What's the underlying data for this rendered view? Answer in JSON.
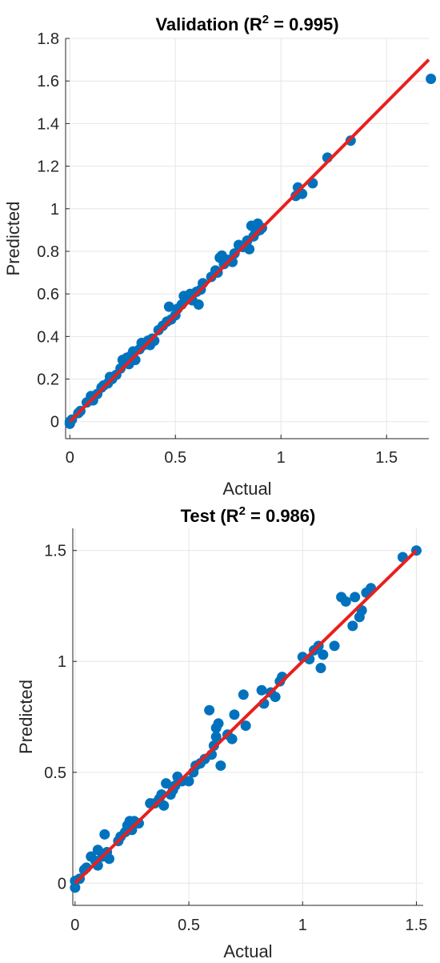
{
  "chart_data": [
    {
      "type": "scatter",
      "title": "Validation (R",
      "title_sup": "2",
      "title_rest": " = 0.995)",
      "xlabel": "Actual",
      "ylabel": "Predicted",
      "xlim": [
        -0.02,
        1.7
      ],
      "ylim": [
        -0.08,
        1.8
      ],
      "xticks": [
        0,
        0.5,
        1,
        1.5
      ],
      "xtick_labels": [
        "0",
        "0.5",
        "1",
        "1.5"
      ],
      "yticks": [
        0,
        0.2,
        0.4,
        0.6,
        0.8,
        1,
        1.2,
        1.4,
        1.6,
        1.8
      ],
      "ytick_labels": [
        "0",
        "0.2",
        "0.4",
        "0.6",
        "0.8",
        "1",
        "1.2",
        "1.4",
        "1.6",
        "1.8"
      ],
      "grid": true,
      "point_color": "#0072BD",
      "fit_color": "#E8201E",
      "fit_line": [
        [
          0,
          0
        ],
        [
          1.7,
          1.7
        ]
      ],
      "points": [
        [
          0,
          0
        ],
        [
          0.01,
          0.01
        ],
        [
          0,
          -0.01
        ],
        [
          0.04,
          0.04
        ],
        [
          0.05,
          0.05
        ],
        [
          0.08,
          0.09
        ],
        [
          0.1,
          0.12
        ],
        [
          0.11,
          0.1
        ],
        [
          0.13,
          0.13
        ],
        [
          0.15,
          0.16
        ],
        [
          0.16,
          0.17
        ],
        [
          0.18,
          0.18
        ],
        [
          0.19,
          0.21
        ],
        [
          0.2,
          0.2
        ],
        [
          0.22,
          0.22
        ],
        [
          0.24,
          0.25
        ],
        [
          0.25,
          0.29
        ],
        [
          0.27,
          0.3
        ],
        [
          0.28,
          0.27
        ],
        [
          0.29,
          0.31
        ],
        [
          0.3,
          0.33
        ],
        [
          0.31,
          0.29
        ],
        [
          0.33,
          0.34
        ],
        [
          0.34,
          0.37
        ],
        [
          0.35,
          0.36
        ],
        [
          0.37,
          0.38
        ],
        [
          0.38,
          0.36
        ],
        [
          0.39,
          0.39
        ],
        [
          0.4,
          0.38
        ],
        [
          0.42,
          0.43
        ],
        [
          0.44,
          0.45
        ],
        [
          0.46,
          0.47
        ],
        [
          0.47,
          0.54
        ],
        [
          0.48,
          0.48
        ],
        [
          0.5,
          0.5
        ],
        [
          0.51,
          0.53
        ],
        [
          0.53,
          0.55
        ],
        [
          0.54,
          0.59
        ],
        [
          0.55,
          0.58
        ],
        [
          0.57,
          0.6
        ],
        [
          0.58,
          0.57
        ],
        [
          0.6,
          0.61
        ],
        [
          0.61,
          0.55
        ],
        [
          0.62,
          0.62
        ],
        [
          0.63,
          0.65
        ],
        [
          0.67,
          0.68
        ],
        [
          0.69,
          0.71
        ],
        [
          0.7,
          0.7
        ],
        [
          0.71,
          0.77
        ],
        [
          0.72,
          0.78
        ],
        [
          0.73,
          0.74
        ],
        [
          0.75,
          0.76
        ],
        [
          0.77,
          0.75
        ],
        [
          0.78,
          0.79
        ],
        [
          0.8,
          0.83
        ],
        [
          0.82,
          0.82
        ],
        [
          0.84,
          0.85
        ],
        [
          0.85,
          0.81
        ],
        [
          0.86,
          0.92
        ],
        [
          0.87,
          0.87
        ],
        [
          0.88,
          0.89
        ],
        [
          0.89,
          0.93
        ],
        [
          0.9,
          0.9
        ],
        [
          0.91,
          0.91
        ],
        [
          1.07,
          1.06
        ],
        [
          1.08,
          1.1
        ],
        [
          1.1,
          1.07
        ],
        [
          1.15,
          1.12
        ],
        [
          1.22,
          1.24
        ],
        [
          1.33,
          1.32
        ],
        [
          1.71,
          1.61
        ]
      ]
    },
    {
      "type": "scatter",
      "title": "Test (R",
      "title_sup": "2",
      "title_rest": " = 0.986)",
      "xlabel": "Actual",
      "ylabel": "Predicted",
      "xlim": [
        -0.01,
        1.53
      ],
      "ylim": [
        -0.1,
        1.6
      ],
      "xticks": [
        0,
        0.5,
        1,
        1.5
      ],
      "xtick_labels": [
        "0",
        "0.5",
        "1",
        "1.5"
      ],
      "yticks": [
        0,
        0.5,
        1,
        1.5
      ],
      "ytick_labels": [
        "0",
        "0.5",
        "1",
        "1.5"
      ],
      "grid": true,
      "point_color": "#0072BD",
      "fit_color": "#E8201E",
      "fit_line": [
        [
          0,
          0
        ],
        [
          1.5,
          1.5
        ]
      ],
      "points": [
        [
          0,
          -0.02
        ],
        [
          0,
          0.01
        ],
        [
          0.02,
          0.02
        ],
        [
          0.04,
          0.06
        ],
        [
          0.05,
          0.07
        ],
        [
          0.07,
          0.12
        ],
        [
          0.09,
          0.1
        ],
        [
          0.1,
          0.08
        ],
        [
          0.1,
          0.15
        ],
        [
          0.12,
          0.12
        ],
        [
          0.13,
          0.22
        ],
        [
          0.14,
          0.14
        ],
        [
          0.15,
          0.11
        ],
        [
          0.19,
          0.19
        ],
        [
          0.2,
          0.21
        ],
        [
          0.22,
          0.23
        ],
        [
          0.23,
          0.26
        ],
        [
          0.24,
          0.28
        ],
        [
          0.25,
          0.24
        ],
        [
          0.26,
          0.28
        ],
        [
          0.28,
          0.27
        ],
        [
          0.33,
          0.36
        ],
        [
          0.35,
          0.36
        ],
        [
          0.37,
          0.38
        ],
        [
          0.38,
          0.4
        ],
        [
          0.39,
          0.35
        ],
        [
          0.4,
          0.45
        ],
        [
          0.42,
          0.4
        ],
        [
          0.43,
          0.42
        ],
        [
          0.44,
          0.44
        ],
        [
          0.45,
          0.48
        ],
        [
          0.47,
          0.46
        ],
        [
          0.5,
          0.46
        ],
        [
          0.52,
          0.5
        ],
        [
          0.53,
          0.53
        ],
        [
          0.55,
          0.54
        ],
        [
          0.57,
          0.56
        ],
        [
          0.59,
          0.78
        ],
        [
          0.6,
          0.58
        ],
        [
          0.61,
          0.62
        ],
        [
          0.62,
          0.66
        ],
        [
          0.62,
          0.7
        ],
        [
          0.63,
          0.72
        ],
        [
          0.64,
          0.53
        ],
        [
          0.67,
          0.67
        ],
        [
          0.69,
          0.65
        ],
        [
          0.7,
          0.76
        ],
        [
          0.74,
          0.85
        ],
        [
          0.75,
          0.71
        ],
        [
          0.82,
          0.87
        ],
        [
          0.83,
          0.81
        ],
        [
          0.86,
          0.86
        ],
        [
          0.88,
          0.84
        ],
        [
          0.9,
          0.91
        ],
        [
          0.91,
          0.93
        ],
        [
          1,
          1.02
        ],
        [
          1.03,
          1.01
        ],
        [
          1.05,
          1.05
        ],
        [
          1.07,
          1.07
        ],
        [
          1.08,
          0.97
        ],
        [
          1.09,
          1.03
        ],
        [
          1.14,
          1.07
        ],
        [
          1.17,
          1.29
        ],
        [
          1.19,
          1.27
        ],
        [
          1.22,
          1.16
        ],
        [
          1.23,
          1.29
        ],
        [
          1.25,
          1.2
        ],
        [
          1.26,
          1.23
        ],
        [
          1.28,
          1.31
        ],
        [
          1.3,
          1.33
        ],
        [
          1.44,
          1.47
        ],
        [
          1.5,
          1.5
        ]
      ]
    }
  ]
}
